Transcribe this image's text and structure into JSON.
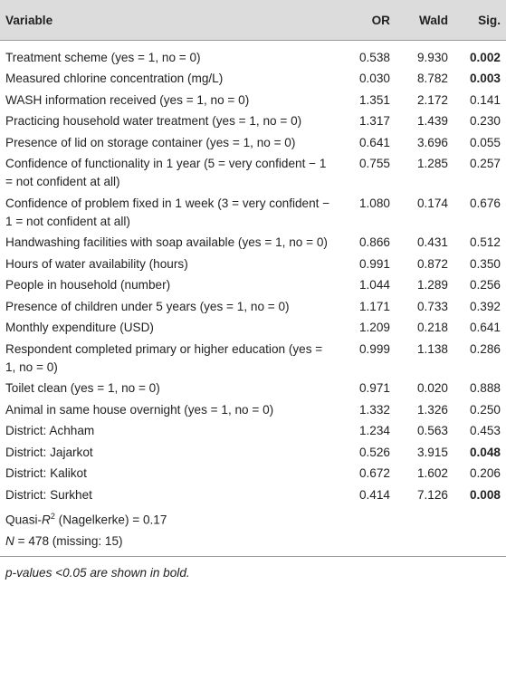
{
  "header": {
    "variable": "Variable",
    "or": "OR",
    "wald": "Wald",
    "sig": "Sig."
  },
  "rows": [
    {
      "variable": "Treatment scheme (yes = 1, no = 0)",
      "or": "0.538",
      "wald": "9.930",
      "sig": "0.002",
      "bold": true
    },
    {
      "variable": "Measured chlorine concentration (mg/L)",
      "or": "0.030",
      "wald": "8.782",
      "sig": "0.003",
      "bold": true
    },
    {
      "variable": "WASH information received (yes = 1, no = 0)",
      "or": "1.351",
      "wald": "2.172",
      "sig": "0.141",
      "bold": false
    },
    {
      "variable": "Practicing household water treatment (yes = 1, no = 0)",
      "or": "1.317",
      "wald": "1.439",
      "sig": "0.230",
      "bold": false
    },
    {
      "variable": "Presence of lid on storage container (yes = 1, no = 0)",
      "or": "0.641",
      "wald": "3.696",
      "sig": "0.055",
      "bold": false
    },
    {
      "variable": "Confidence of functionality in 1 year (5 = very confident − 1 = not confident at all)",
      "or": "0.755",
      "wald": "1.285",
      "sig": "0.257",
      "bold": false
    },
    {
      "variable": "Confidence of problem fixed in 1 week (3 = very confident − 1 = not confident at all)",
      "or": "1.080",
      "wald": "0.174",
      "sig": "0.676",
      "bold": false
    },
    {
      "variable": "Handwashing facilities with soap available (yes = 1, no = 0)",
      "or": "0.866",
      "wald": "0.431",
      "sig": "0.512",
      "bold": false
    },
    {
      "variable": "Hours of water availability (hours)",
      "or": "0.991",
      "wald": "0.872",
      "sig": "0.350",
      "bold": false
    },
    {
      "variable": "People in household (number)",
      "or": "1.044",
      "wald": "1.289",
      "sig": "0.256",
      "bold": false
    },
    {
      "variable": "Presence of children under 5 years (yes = 1, no = 0)",
      "or": "1.171",
      "wald": "0.733",
      "sig": "0.392",
      "bold": false
    },
    {
      "variable": "Monthly expenditure (USD)",
      "or": "1.209",
      "wald": "0.218",
      "sig": "0.641",
      "bold": false
    },
    {
      "variable": "Respondent completed primary or higher education (yes = 1, no = 0)",
      "or": "0.999",
      "wald": "1.138",
      "sig": "0.286",
      "bold": false
    },
    {
      "variable": "Toilet clean (yes = 1, no = 0)",
      "or": "0.971",
      "wald": "0.020",
      "sig": "0.888",
      "bold": false
    },
    {
      "variable": "Animal in same house overnight (yes = 1, no = 0)",
      "or": "1.332",
      "wald": "1.326",
      "sig": "0.250",
      "bold": false
    },
    {
      "variable": "District: Achham",
      "or": "1.234",
      "wald": "0.563",
      "sig": "0.453",
      "bold": false
    },
    {
      "variable": "District: Jajarkot",
      "or": "0.526",
      "wald": "3.915",
      "sig": "0.048",
      "bold": true
    },
    {
      "variable": "District: Kalikot",
      "or": "0.672",
      "wald": "1.602",
      "sig": "0.206",
      "bold": false
    },
    {
      "variable": "District: Surkhet",
      "or": "0.414",
      "wald": "7.126",
      "sig": "0.008",
      "bold": true
    }
  ],
  "summary": {
    "r2_prefix": "Quasi-",
    "r2_symbol": "R",
    "r2_sup": "2",
    "r2_suffix": " (Nagelkerke) = 0.17",
    "n_symbol": "N",
    "n_suffix": " = 478 (missing: 15)"
  },
  "footnote": "p-values <0.05 are shown in bold."
}
